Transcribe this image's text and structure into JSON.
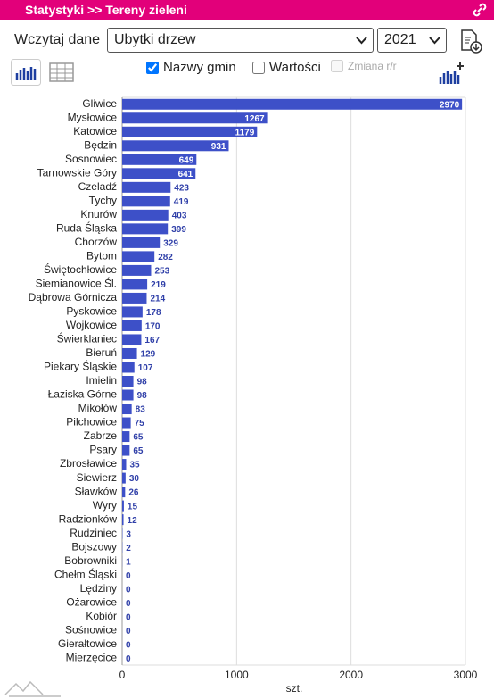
{
  "header": {
    "title": "Statystyki >> Tereny zieleni"
  },
  "controls": {
    "load_label": "Wczytaj dane",
    "dataset": "Ubytki drzew",
    "year": "2021",
    "checkboxes": [
      {
        "label": "Nazwy gmin",
        "checked": true,
        "disabled": false
      },
      {
        "label": "Wartości",
        "checked": false,
        "disabled": false
      },
      {
        "label": "Zmiana r/r",
        "checked": false,
        "disabled": true
      }
    ]
  },
  "chart_data": {
    "type": "bar",
    "orientation": "horizontal",
    "color": "#3d50c8",
    "categories": [
      "Gliwice",
      "Mysłowice",
      "Katowice",
      "Będzin",
      "Sosnowiec",
      "Tarnowskie Góry",
      "Czeladź",
      "Tychy",
      "Knurów",
      "Ruda Śląska",
      "Chorzów",
      "Bytom",
      "Świętochłowice",
      "Siemianowice Śl.",
      "Dąbrowa Górnicza",
      "Pyskowice",
      "Wojkowice",
      "Świerklaniec",
      "Bieruń",
      "Piekary Śląskie",
      "Imielin",
      "Łaziska Górne",
      "Mikołów",
      "Pilchowice",
      "Zabrze",
      "Psary",
      "Zbrosławice",
      "Siewierz",
      "Sławków",
      "Wyry",
      "Radzionków",
      "Rudziniec",
      "Bojszowy",
      "Bobrowniki",
      "Chełm Śląski",
      "Lędziny",
      "Ożarowice",
      "Kobiór",
      "Sośnowice",
      "Gierałtowice",
      "Mierzęcice"
    ],
    "values": [
      2970,
      1267,
      1179,
      931,
      649,
      641,
      423,
      419,
      403,
      399,
      329,
      282,
      253,
      219,
      214,
      178,
      170,
      167,
      129,
      107,
      98,
      98,
      83,
      75,
      65,
      65,
      35,
      30,
      26,
      15,
      12,
      3,
      2,
      1,
      0,
      0,
      0,
      0,
      0,
      0,
      0
    ],
    "xlim": [
      0,
      3000
    ],
    "xticks": [
      0,
      1000,
      2000,
      3000
    ],
    "xlabel": "szt.",
    "grid": true
  }
}
